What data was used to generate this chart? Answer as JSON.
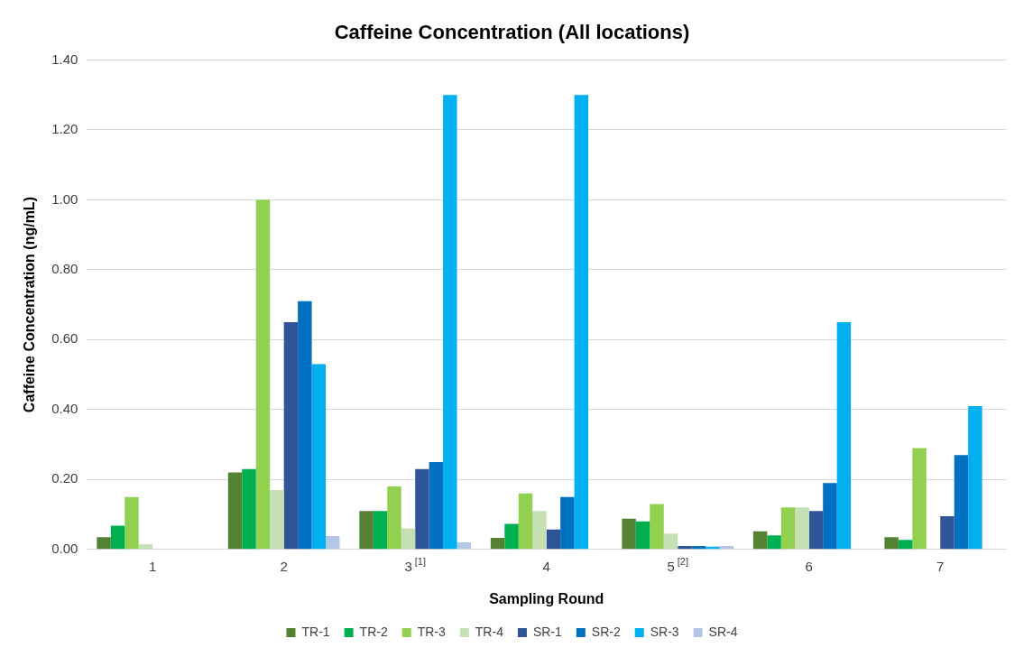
{
  "chart_data": {
    "type": "bar",
    "title": "Caffeine Concentration (All locations)",
    "xlabel": "Sampling Round",
    "ylabel": "Caffeine Concentration (ng/mL)",
    "categories": [
      "1",
      "2",
      "3$^{[1]}$",
      "4",
      "5$^{[2]}$",
      "6",
      "7"
    ],
    "series": [
      {
        "name": "TR-1",
        "color": "#548235",
        "values": [
          0.035,
          0.22,
          0.11,
          0.033,
          0.088,
          0.052,
          0.035
        ]
      },
      {
        "name": "TR-2",
        "color": "#00b050",
        "values": [
          0.068,
          0.23,
          0.11,
          0.073,
          0.08,
          0.04,
          0.027
        ]
      },
      {
        "name": "TR-3",
        "color": "#92d050",
        "values": [
          0.15,
          1.0,
          0.18,
          0.16,
          0.13,
          0.12,
          0.29
        ]
      },
      {
        "name": "TR-4",
        "color": "#c5e0b4",
        "values": [
          0.015,
          0.17,
          0.06,
          0.11,
          0.045,
          0.12,
          null
        ]
      },
      {
        "name": "SR-1",
        "color": "#2f5597",
        "values": [
          null,
          0.65,
          0.23,
          0.057,
          0.01,
          0.11,
          0.095
        ]
      },
      {
        "name": "SR-2",
        "color": "#0070c0",
        "values": [
          null,
          0.71,
          0.25,
          0.15,
          0.01,
          0.19,
          0.27
        ]
      },
      {
        "name": "SR-3",
        "color": "#00b0f0",
        "values": [
          null,
          0.53,
          1.3,
          1.3,
          0.008,
          0.65,
          0.41
        ]
      },
      {
        "name": "SR-4",
        "color": "#b4c7e7",
        "values": [
          null,
          0.038,
          0.02,
          null,
          0.01,
          null,
          null
        ]
      }
    ],
    "ylim": [
      0,
      1.4
    ],
    "yticks": [
      {
        "value": 0,
        "label": "0.00"
      },
      {
        "value": 0.2,
        "label": "0.20"
      },
      {
        "value": 0.4,
        "label": "0.40"
      },
      {
        "value": 0.6,
        "label": "0.60"
      },
      {
        "value": 0.8,
        "label": "0.80"
      },
      {
        "value": 1.0,
        "label": "1.00"
      },
      {
        "value": 1.2,
        "label": "1.20"
      },
      {
        "value": 1.4,
        "label": "1.40"
      }
    ],
    "grid": "y",
    "legend": "bottom"
  }
}
